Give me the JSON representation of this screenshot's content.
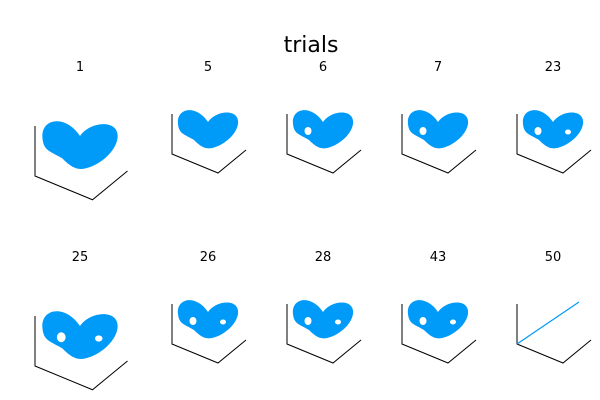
{
  "chart_data": {
    "type": "line",
    "title": "trials",
    "series_color": "#009AF9",
    "axes_style": "3d-box",
    "grid": false,
    "legend": "none",
    "panels": [
      {
        "label": "1",
        "shape": "attractor",
        "holes": 0
      },
      {
        "label": "5",
        "shape": "attractor",
        "holes": 0
      },
      {
        "label": "6",
        "shape": "attractor",
        "holes": 1
      },
      {
        "label": "7",
        "shape": "attractor",
        "holes": 1
      },
      {
        "label": "23",
        "shape": "attractor",
        "holes": 2
      },
      {
        "label": "25",
        "shape": "attractor",
        "holes": 2
      },
      {
        "label": "26",
        "shape": "attractor",
        "holes": 2
      },
      {
        "label": "28",
        "shape": "attractor",
        "holes": 2
      },
      {
        "label": "43",
        "shape": "attractor",
        "holes": 2
      },
      {
        "label": "50",
        "shape": "line",
        "holes": 0
      }
    ]
  }
}
